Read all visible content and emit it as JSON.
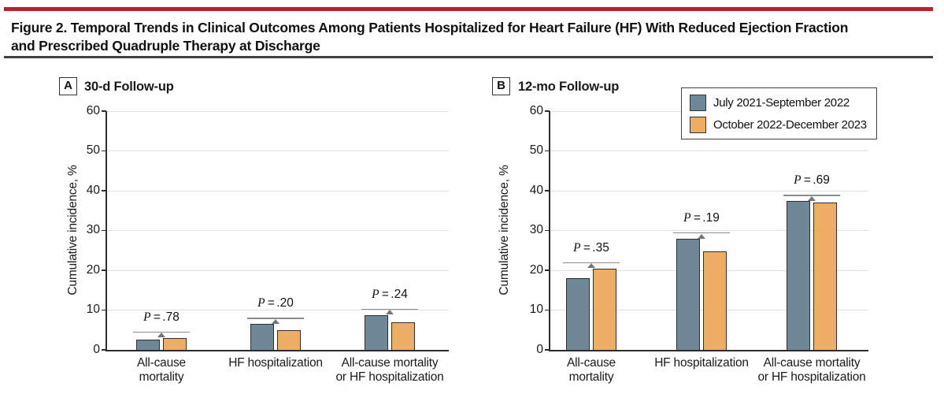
{
  "colors": {
    "top_rule": "#bf1e2d",
    "divider_rule": "#404040",
    "axis": "#2e2e2e",
    "gridline": "#e0e0e0",
    "bar_outline": "#2f2f2f",
    "bracket_line": "#8c8c8c",
    "bracket_arrow": "#757575",
    "series_blue": "#6e8898",
    "series_orange": "#ecae66"
  },
  "figure": {
    "title_line1": "Figure 2. Temporal Trends in Clinical Outcomes Among Patients Hospitalized for Heart Failure (HF) With Reduced Ejection Fraction",
    "title_line2": "and Prescribed Quadruple Therapy at Discharge"
  },
  "legend": {
    "position": "top-right-panel-b",
    "entries": [
      {
        "label": "July 2021-September 2022",
        "color": "#6e8898"
      },
      {
        "label": "October 2022-December 2023",
        "color": "#ecae66"
      }
    ]
  },
  "chart_data": [
    {
      "type": "bar",
      "panel": "A",
      "panel_title": "30-d Follow-up",
      "ylabel": "Cumulative incidence, %",
      "ylim": [
        0,
        60
      ],
      "yticks": [
        0,
        10,
        20,
        30,
        40,
        50,
        60
      ],
      "grid": true,
      "categories": [
        [
          "All-cause",
          "mortality"
        ],
        [
          "HF hospitalization"
        ],
        [
          "All-cause mortality",
          "or HF hospitalization"
        ]
      ],
      "series": [
        {
          "name": "July 2021-September 2022",
          "color": "#6e8898",
          "values": [
            2.5,
            6.5,
            8.7
          ]
        },
        {
          "name": "October 2022-December 2023",
          "color": "#ecae66",
          "values": [
            3.0,
            4.9,
            7.0
          ]
        }
      ],
      "p_label": "P",
      "p_values": [
        ".78",
        ".20",
        ".24"
      ]
    },
    {
      "type": "bar",
      "panel": "B",
      "panel_title": "12-mo Follow-up",
      "ylabel": "Cumulative incidence, %",
      "ylim": [
        0,
        60
      ],
      "yticks": [
        0,
        10,
        20,
        30,
        40,
        50,
        60
      ],
      "grid": true,
      "categories": [
        [
          "All-cause",
          "mortality"
        ],
        [
          "HF hospitalization"
        ],
        [
          "All-cause mortality",
          "or HF hospitalization"
        ]
      ],
      "series": [
        {
          "name": "July 2021-September 2022",
          "color": "#6e8898",
          "values": [
            18.0,
            27.9,
            37.4
          ]
        },
        {
          "name": "October 2022-December 2023",
          "color": "#ecae66",
          "values": [
            20.4,
            24.8,
            37.0
          ]
        }
      ],
      "p_label": "P",
      "p_values": [
        ".35",
        ".19",
        ".69"
      ]
    }
  ]
}
